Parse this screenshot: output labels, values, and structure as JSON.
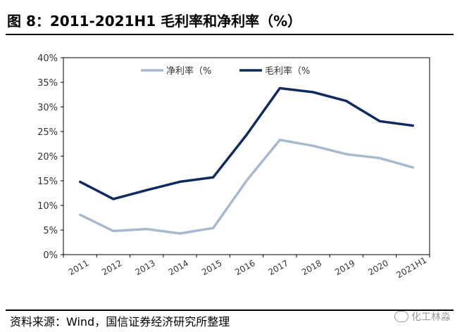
{
  "header": {
    "title": "图 8：2011-2021H1 毛利率和净利率（%）"
  },
  "footer": {
    "source": "资料来源：Wind，国信证券经济研究所整理",
    "watermark": "化工林淼"
  },
  "colors": {
    "net_margin": "#a7b9cf",
    "gross_margin": "#0f2a5c",
    "frame": "#000000"
  },
  "chart_data": {
    "type": "line",
    "categories": [
      "2011",
      "2012",
      "2013",
      "2014",
      "2015",
      "2016",
      "2017",
      "2018",
      "2019",
      "2020",
      "2021H1"
    ],
    "series": [
      {
        "name": "净利率（%",
        "values": [
          8.1,
          4.8,
          5.2,
          4.3,
          5.4,
          15.0,
          23.3,
          22.1,
          20.4,
          19.6,
          17.7
        ]
      },
      {
        "name": "毛利率（%",
        "values": [
          14.8,
          11.3,
          13.1,
          14.8,
          15.7,
          24.3,
          33.8,
          33.0,
          31.2,
          27.1,
          26.2
        ]
      }
    ],
    "ylim": [
      0,
      40
    ],
    "yticks": [
      "0%",
      "5%",
      "10%",
      "15%",
      "20%",
      "25%",
      "30%",
      "35%",
      "40%"
    ],
    "legend": "top-center",
    "grid": false
  }
}
